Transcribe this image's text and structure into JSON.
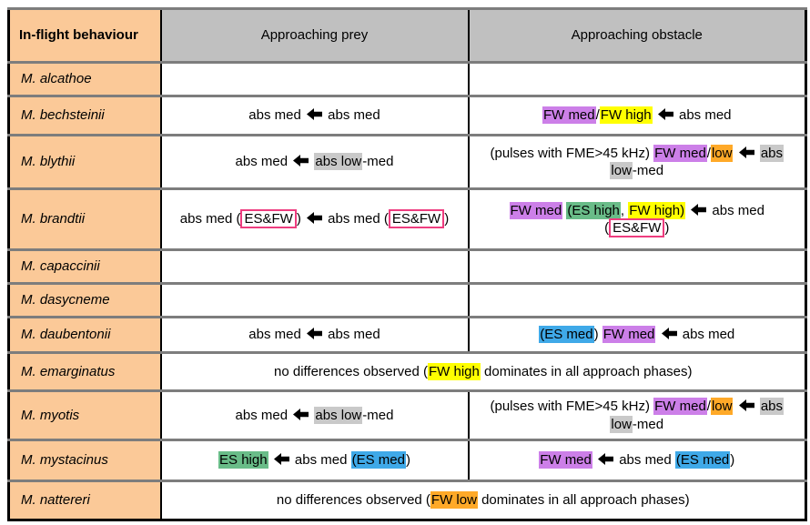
{
  "colors": {
    "purple": "#cc7fe8",
    "yellow": "#ffff00",
    "green": "#69bc88",
    "blue": "#3fa9e8",
    "orange": "#ffa928",
    "gray_highlight": "#c9c9c9",
    "header_gray": "#c0c0c0",
    "species_peach": "#fbc998",
    "pink_box_border": "#ee3d7f",
    "row_separator": "#7d7d7d"
  },
  "table": {
    "header": {
      "species": "In-flight behaviour",
      "prey": "Approaching prey",
      "obstacle": "Approaching obstacle"
    },
    "rows": [
      {
        "species": "M. alcathoe",
        "prey": [],
        "obstacle": []
      },
      {
        "species": "M. bechsteinii",
        "prey": [
          {
            "t": "abs med "
          },
          {
            "icon": "arrow-left"
          },
          {
            "t": " abs med"
          }
        ],
        "obstacle": [
          {
            "t": "FW med",
            "hl": "purple"
          },
          {
            "t": "/"
          },
          {
            "t": "FW high",
            "hl": "yellow"
          },
          {
            "t": " "
          },
          {
            "icon": "arrow-left"
          },
          {
            "t": " abs med"
          }
        ]
      },
      {
        "species": "M. blythii",
        "prey": [
          {
            "t": "abs med  "
          },
          {
            "icon": "arrow-left"
          },
          {
            "t": " "
          },
          {
            "t": "abs low",
            "hl": "gray"
          },
          {
            "t": "-med"
          }
        ],
        "obstacle": [
          {
            "t": "(pulses with FME>45 kHz) "
          },
          {
            "t": "FW med",
            "hl": "purple"
          },
          {
            "t": "/"
          },
          {
            "t": "low",
            "hl": "orange"
          },
          {
            "t": " "
          },
          {
            "icon": "arrow-left"
          },
          {
            "t": " "
          },
          {
            "t": "abs",
            "hl": "gray"
          },
          {
            "br": true
          },
          {
            "t": "low",
            "hl": "gray"
          },
          {
            "t": "-med"
          }
        ]
      },
      {
        "species": "M. brandtii",
        "prey": [
          {
            "t": "abs med ("
          },
          {
            "t": "ES&FW",
            "box": true
          },
          {
            "t": ") "
          },
          {
            "icon": "arrow-left"
          },
          {
            "t": " abs med ("
          },
          {
            "t": "ES&FW",
            "box": true
          },
          {
            "t": ")"
          }
        ],
        "obstacle": [
          {
            "t": "FW med",
            "hl": "purple"
          },
          {
            "t": " "
          },
          {
            "t": "(ES high",
            "hl": "green"
          },
          {
            "t": ", "
          },
          {
            "t": "FW high)",
            "hl": "yellow"
          },
          {
            "t": " "
          },
          {
            "icon": "arrow-left"
          },
          {
            "t": " abs med"
          },
          {
            "br": true
          },
          {
            "t": "("
          },
          {
            "t": "ES&FW",
            "box": true
          },
          {
            "t": ")"
          }
        ]
      },
      {
        "species": "M. capaccinii",
        "prey": [],
        "obstacle": []
      },
      {
        "species": "M. dasycneme",
        "prey": [],
        "obstacle": []
      },
      {
        "species": "M. daubentonii",
        "prey": [
          {
            "t": "abs med "
          },
          {
            "icon": "arrow-left"
          },
          {
            "t": " abs med"
          }
        ],
        "obstacle": [
          {
            "t": "(ES med",
            "hl": "blue"
          },
          {
            "t": ") "
          },
          {
            "t": "FW med",
            "hl": "purple"
          },
          {
            "t": " "
          },
          {
            "icon": "arrow-left"
          },
          {
            "t": " abs med"
          }
        ]
      },
      {
        "species": "M. emarginatus",
        "span": true,
        "content": [
          {
            "t": "no differences observed ("
          },
          {
            "t": "FW high",
            "hl": "yellow"
          },
          {
            "t": " dominates in all approach phases)"
          }
        ]
      },
      {
        "species": "M. myotis",
        "prey": [
          {
            "t": "abs med  "
          },
          {
            "icon": "arrow-left"
          },
          {
            "t": " "
          },
          {
            "t": "abs low",
            "hl": "gray"
          },
          {
            "t": "-med"
          }
        ],
        "obstacle": [
          {
            "t": "(pulses with FME>45 kHz) "
          },
          {
            "t": "FW med",
            "hl": "purple"
          },
          {
            "t": "/"
          },
          {
            "t": "low",
            "hl": "orange"
          },
          {
            "t": " "
          },
          {
            "icon": "arrow-left"
          },
          {
            "t": " "
          },
          {
            "t": "abs",
            "hl": "gray"
          },
          {
            "br": true
          },
          {
            "t": "low",
            "hl": "gray"
          },
          {
            "t": "-med"
          }
        ]
      },
      {
        "species": "M. mystacinus",
        "prey": [
          {
            "t": "ES high",
            "hl": "green"
          },
          {
            "t": " "
          },
          {
            "icon": "arrow-left"
          },
          {
            "t": " abs med "
          },
          {
            "t": "(ES med",
            "hl": "blue"
          },
          {
            "t": ")"
          }
        ],
        "obstacle": [
          {
            "t": "FW med",
            "hl": "purple"
          },
          {
            "t": " "
          },
          {
            "icon": "arrow-left"
          },
          {
            "t": " abs med "
          },
          {
            "t": "(ES med",
            "hl": "blue"
          },
          {
            "t": ")"
          }
        ]
      },
      {
        "species": "M. nattereri",
        "span": true,
        "content": [
          {
            "t": "no differences observed  ("
          },
          {
            "t": "FW low",
            "hl": "orange"
          },
          {
            "t": " dominates in all approach phases)"
          }
        ]
      }
    ]
  }
}
